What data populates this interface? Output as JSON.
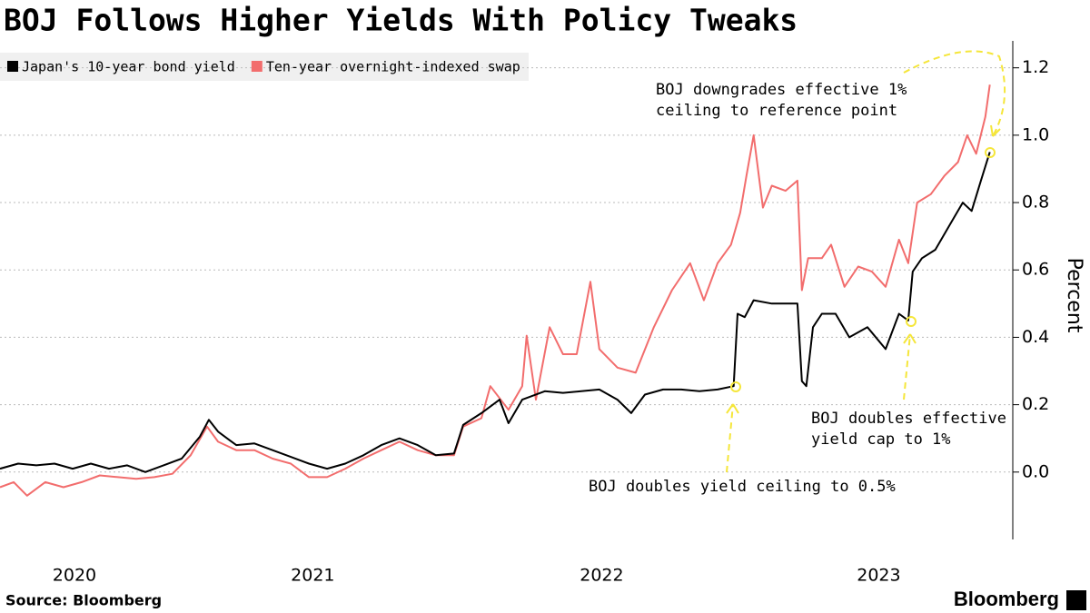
{
  "chart_data": {
    "type": "line",
    "title": "BOJ Follows Higher Yields With Policy Tweaks",
    "y_label": "Percent",
    "source": "Source: Bloomberg",
    "brand": "Bloomberg",
    "xlim": [
      2020.5,
      2023.9
    ],
    "xticks": [
      {
        "value": 2020.75,
        "label": "2020"
      },
      {
        "value": 2021.55,
        "label": "2021"
      },
      {
        "value": 2022.52,
        "label": "2022"
      },
      {
        "value": 2023.45,
        "label": "2023"
      }
    ],
    "ylim": [
      -0.2,
      1.28
    ],
    "yticks": [
      {
        "value": 0,
        "label": "0.0"
      },
      0.2,
      0.4,
      0.6,
      0.8,
      {
        "value": 1,
        "label": "1.0"
      },
      1.2
    ],
    "grid": true,
    "legend": "top-left",
    "series": [
      {
        "name": "Japan's 10-year bond yield",
        "color": "#000000",
        "x": [
          2020.5,
          2020.561,
          2020.622,
          2020.683,
          2020.744,
          2020.805,
          2020.866,
          2020.927,
          2020.988,
          2021.049,
          2021.11,
          2021.171,
          2021.201,
          2021.232,
          2021.293,
          2021.354,
          2021.415,
          2021.476,
          2021.537,
          2021.598,
          2021.659,
          2021.72,
          2021.78,
          2021.841,
          2021.902,
          2021.963,
          2022.024,
          2022.055,
          2022.116,
          2022.177,
          2022.207,
          2022.253,
          2022.329,
          2022.39,
          2022.451,
          2022.512,
          2022.573,
          2022.619,
          2022.665,
          2022.726,
          2022.787,
          2022.848,
          2022.909,
          2022.963,
          2022.976,
          2023.0,
          2023.03,
          2023.091,
          2023.152,
          2023.177,
          2023.192,
          2023.207,
          2023.229,
          2023.259,
          2023.305,
          2023.351,
          2023.412,
          2023.473,
          2023.518,
          2023.549,
          2023.564,
          2023.595,
          2023.64,
          2023.686,
          2023.732,
          2023.762,
          2023.793,
          2023.823
        ],
        "values": [
          0.01,
          0.025,
          0.02,
          0.025,
          0.01,
          0.025,
          0.01,
          0.02,
          0.0,
          0.02,
          0.04,
          0.105,
          0.155,
          0.12,
          0.08,
          0.085,
          0.065,
          0.045,
          0.025,
          0.01,
          0.025,
          0.05,
          0.08,
          0.1,
          0.08,
          0.05,
          0.055,
          0.14,
          0.175,
          0.215,
          0.145,
          0.215,
          0.24,
          0.235,
          0.24,
          0.245,
          0.215,
          0.175,
          0.23,
          0.245,
          0.245,
          0.24,
          0.245,
          0.255,
          0.47,
          0.46,
          0.51,
          0.5,
          0.5,
          0.5,
          0.27,
          0.255,
          0.43,
          0.47,
          0.47,
          0.4,
          0.43,
          0.365,
          0.47,
          0.45,
          0.595,
          0.635,
          0.66,
          0.73,
          0.8,
          0.775,
          0.865,
          0.95
        ]
      },
      {
        "name": "Ten-year overnight-indexed swap",
        "color": "#f26d6d",
        "x": [
          2020.5,
          2020.546,
          2020.591,
          2020.652,
          2020.713,
          2020.774,
          2020.835,
          2020.896,
          2020.957,
          2021.018,
          2021.079,
          2021.14,
          2021.195,
          2021.232,
          2021.293,
          2021.354,
          2021.415,
          2021.476,
          2021.537,
          2021.598,
          2021.659,
          2021.72,
          2021.78,
          2021.841,
          2021.902,
          2021.963,
          2022.024,
          2022.055,
          2022.116,
          2022.146,
          2022.207,
          2022.253,
          2022.268,
          2022.299,
          2022.345,
          2022.39,
          2022.436,
          2022.482,
          2022.512,
          2022.573,
          2022.634,
          2022.695,
          2022.756,
          2022.817,
          2022.863,
          2022.909,
          2022.954,
          2022.985,
          2023.006,
          2023.03,
          2023.061,
          2023.091,
          2023.137,
          2023.177,
          2023.192,
          2023.213,
          2023.259,
          2023.29,
          2023.335,
          2023.381,
          2023.427,
          2023.473,
          2023.518,
          2023.549,
          2023.579,
          2023.625,
          2023.671,
          2023.716,
          2023.747,
          2023.777,
          2023.808,
          2023.823
        ],
        "values": [
          -0.045,
          -0.03,
          -0.07,
          -0.03,
          -0.045,
          -0.03,
          -0.01,
          -0.015,
          -0.02,
          -0.015,
          -0.005,
          0.05,
          0.135,
          0.09,
          0.065,
          0.065,
          0.04,
          0.025,
          -0.015,
          -0.015,
          0.01,
          0.04,
          0.065,
          0.09,
          0.065,
          0.05,
          0.05,
          0.135,
          0.16,
          0.255,
          0.185,
          0.255,
          0.405,
          0.215,
          0.43,
          0.35,
          0.35,
          0.565,
          0.365,
          0.31,
          0.295,
          0.43,
          0.54,
          0.62,
          0.51,
          0.62,
          0.675,
          0.77,
          0.88,
          1.0,
          0.785,
          0.85,
          0.835,
          0.865,
          0.54,
          0.635,
          0.635,
          0.675,
          0.55,
          0.61,
          0.595,
          0.55,
          0.69,
          0.62,
          0.8,
          0.825,
          0.88,
          0.92,
          1.0,
          0.945,
          1.055,
          1.15
        ]
      }
    ],
    "annotations": [
      {
        "lines": [
          "BOJ downgrades effective 1%",
          "ceiling to reference point"
        ]
      },
      {
        "lines": [
          "BOJ doubles effective",
          "yield cap to 1%"
        ]
      },
      {
        "lines": [
          "BOJ doubles yield ceiling to 0.5%"
        ]
      }
    ]
  }
}
